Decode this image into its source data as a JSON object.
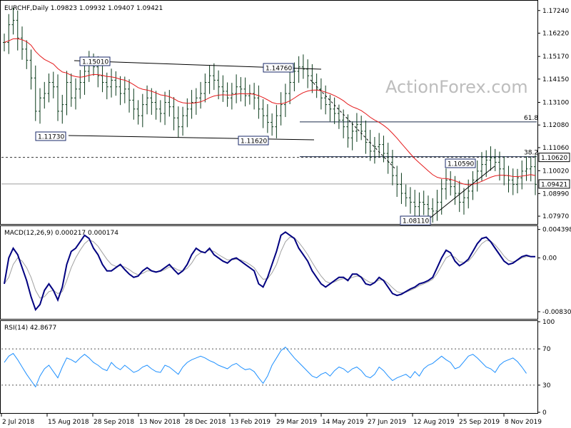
{
  "chart_data": [
    {
      "type": "candlestick",
      "panel": "price",
      "header": "EURCHF,Daily  1.09823 1.09932 1.09407 1.09421",
      "watermark": "ActionForex.com",
      "y_range": [
        1.0765,
        1.1765
      ],
      "y_ticks": [
        "1.17240",
        "1.16220",
        "1.15170",
        "1.14150",
        "1.13100",
        "1.12080",
        "1.11060",
        "1.10020",
        "1.08990",
        "1.07970"
      ],
      "current_price_label": "1.09421",
      "current_price": 1.09421,
      "level_label_1062": "1.10620",
      "level_1062": 1.1062,
      "fib_618_label": "61.8",
      "fib_618": 1.1222,
      "fib_382_label": "38.2",
      "fib_382": 1.1062,
      "price_labels": [
        {
          "text": "1.15010",
          "value": 1.1501,
          "date_index": 18
        },
        {
          "text": "1.14760",
          "value": 1.1476,
          "date_index": 68
        },
        {
          "text": "1.11730",
          "value": 1.1173,
          "date_index": 11
        },
        {
          "text": "1.11620",
          "value": 1.1162,
          "date_index": 63
        },
        {
          "text": "1.10590",
          "value": 1.1059,
          "date_index": 108
        },
        {
          "text": "1.08110",
          "value": 1.0811,
          "date_index": 97
        }
      ],
      "ema_color": "#e41a1c",
      "candle_color": "#0a3a1a",
      "series_color_hint": "dark green OHLC bars with red moving average",
      "x_tick_labels": [
        "2 Jul 2018",
        "15 Aug 2018",
        "28 Sep 2018",
        "13 Nov 2018",
        "28 Dec 2018",
        "13 Feb 2019",
        "29 Mar 2019",
        "14 May 2019",
        "27 Jun 2019",
        "12 Aug 2019",
        "25 Sep 2019",
        "8 Nov 2019"
      ],
      "close_series": [
        1.158,
        1.166,
        1.168,
        1.16,
        1.155,
        1.15,
        1.142,
        1.127,
        1.133,
        1.135,
        1.14,
        1.138,
        1.127,
        1.13,
        1.14,
        1.133,
        1.137,
        1.14,
        1.145,
        1.149,
        1.147,
        1.143,
        1.14,
        1.138,
        1.141,
        1.138,
        1.135,
        1.137,
        1.132,
        1.128,
        1.125,
        1.13,
        1.133,
        1.131,
        1.128,
        1.126,
        1.131,
        1.129,
        1.124,
        1.12,
        1.125,
        1.128,
        1.131,
        1.133,
        1.135,
        1.14,
        1.143,
        1.141,
        1.138,
        1.136,
        1.133,
        1.135,
        1.138,
        1.137,
        1.134,
        1.135,
        1.133,
        1.128,
        1.125,
        1.122,
        1.12,
        1.125,
        1.13,
        1.135,
        1.14,
        1.145,
        1.147,
        1.146,
        1.143,
        1.14,
        1.137,
        1.133,
        1.13,
        1.128,
        1.126,
        1.123,
        1.12,
        1.115,
        1.118,
        1.121,
        1.118,
        1.113,
        1.109,
        1.111,
        1.112,
        1.108,
        1.104,
        1.098,
        1.094,
        1.09,
        1.088,
        1.086,
        1.084,
        1.086,
        1.085,
        1.083,
        1.082,
        1.086,
        1.092,
        1.096,
        1.093,
        1.09,
        1.086,
        1.088,
        1.091,
        1.096,
        1.1,
        1.103,
        1.105,
        1.106,
        1.104,
        1.101,
        1.098,
        1.096,
        1.094,
        1.097,
        1.1,
        1.101,
        1.102,
        1.094
      ]
    },
    {
      "type": "line",
      "panel": "macd",
      "header": "MACD(12,26,9) 0.000217 0.000174",
      "y_range": [
        -0.0093,
        0.0048
      ],
      "y_ticks": [
        "0.004398",
        "0.00",
        "-0.008306"
      ],
      "tick_values": [
        0.004398,
        0.0,
        -0.008306
      ],
      "series": [
        {
          "name": "MACD",
          "color": "#000080",
          "values": [
            -0.004,
            0.0,
            0.0015,
            0.0005,
            -0.0015,
            -0.0035,
            -0.006,
            -0.008,
            -0.0072,
            -0.005,
            -0.004,
            -0.005,
            -0.0065,
            -0.0045,
            -0.001,
            0.001,
            0.0015,
            0.0025,
            0.0035,
            0.003,
            0.0015,
            0.0005,
            -0.001,
            -0.002,
            -0.002,
            -0.0015,
            -0.001,
            -0.0018,
            -0.0025,
            -0.003,
            -0.0028,
            -0.002,
            -0.0015,
            -0.002,
            -0.0022,
            -0.002,
            -0.0015,
            -0.001,
            -0.0018,
            -0.0025,
            -0.002,
            -0.001,
            0.0005,
            0.0015,
            0.001,
            0.0008,
            0.0015,
            0.0005,
            0.0,
            -0.0005,
            -0.0008,
            -0.0002,
            0.0,
            -0.0005,
            -0.001,
            -0.0015,
            -0.002,
            -0.004,
            -0.0045,
            -0.003,
            -0.001,
            0.001,
            0.0035,
            0.004,
            0.0035,
            0.003,
            0.0015,
            0.0005,
            -0.0005,
            -0.002,
            -0.003,
            -0.004,
            -0.0045,
            -0.004,
            -0.0035,
            -0.003,
            -0.003,
            -0.0035,
            -0.0025,
            -0.0025,
            -0.003,
            -0.004,
            -0.0042,
            -0.0038,
            -0.003,
            -0.0035,
            -0.0045,
            -0.0055,
            -0.0058,
            -0.0056,
            -0.0052,
            -0.0048,
            -0.0045,
            -0.004,
            -0.0038,
            -0.0035,
            -0.003,
            -0.0015,
            0.0,
            0.0012,
            0.0008,
            -0.0005,
            -0.0012,
            -0.0008,
            -0.0002,
            0.001,
            0.0022,
            0.003,
            0.0032,
            0.0025,
            0.0015,
            0.0005,
            -0.0005,
            -0.001,
            -0.0008,
            -0.0003,
            0.0002,
            0.0004,
            0.0002,
            0.0002
          ]
        },
        {
          "name": "Signal",
          "color": "#a0a0a0",
          "values": [
            -0.004,
            -0.003,
            -0.001,
            0.0,
            -0.0005,
            -0.0015,
            -0.003,
            -0.005,
            -0.0062,
            -0.006,
            -0.0052,
            -0.005,
            -0.0055,
            -0.0052,
            -0.0035,
            -0.0015,
            0.0,
            0.0012,
            0.0022,
            0.0028,
            0.0025,
            0.0018,
            0.0008,
            -0.0002,
            -0.001,
            -0.0013,
            -0.0012,
            -0.0014,
            -0.0018,
            -0.0023,
            -0.0026,
            -0.0024,
            -0.002,
            -0.002,
            -0.0021,
            -0.0021,
            -0.0018,
            -0.0014,
            -0.0015,
            -0.0019,
            -0.002,
            -0.0016,
            -0.0008,
            0.0003,
            0.0008,
            0.0009,
            0.0012,
            0.001,
            0.0005,
            0.0001,
            -0.0003,
            -0.0003,
            -0.0002,
            -0.0003,
            -0.0006,
            -0.001,
            -0.0015,
            -0.0025,
            -0.0033,
            -0.0032,
            -0.0023,
            -0.001,
            0.001,
            0.0025,
            0.0032,
            0.0031,
            0.0024,
            0.0015,
            0.0005,
            -0.0007,
            -0.0018,
            -0.0028,
            -0.0036,
            -0.0039,
            -0.0037,
            -0.0034,
            -0.0032,
            -0.0033,
            -0.003,
            -0.0028,
            -0.0029,
            -0.0034,
            -0.0038,
            -0.0038,
            -0.0034,
            -0.0034,
            -0.0039,
            -0.0046,
            -0.0052,
            -0.0054,
            -0.0053,
            -0.005,
            -0.0047,
            -0.0043,
            -0.004,
            -0.0037,
            -0.0033,
            -0.0024,
            -0.0012,
            0.0,
            0.0004,
            0.0001,
            -0.0006,
            -0.0007,
            -0.0005,
            0.0003,
            0.0013,
            0.0022,
            0.0027,
            0.0026,
            0.002,
            0.0012,
            0.0003,
            -0.0004,
            -0.0006,
            -0.0004,
            0.0,
            0.0002,
            0.0002,
            0.0002
          ]
        }
      ]
    },
    {
      "type": "line",
      "panel": "rsi",
      "header": "RSI(14) 42.8677",
      "y_range": [
        0,
        100
      ],
      "y_ticks": [
        "100",
        "70",
        "30",
        "0"
      ],
      "tick_values": [
        100,
        70,
        30,
        0
      ],
      "series": [
        {
          "name": "RSI",
          "color": "#1e90ff",
          "values": [
            55,
            62,
            65,
            58,
            50,
            42,
            35,
            28,
            40,
            48,
            52,
            45,
            38,
            50,
            60,
            58,
            55,
            60,
            64,
            60,
            55,
            52,
            48,
            46,
            55,
            50,
            47,
            52,
            48,
            44,
            46,
            50,
            52,
            48,
            45,
            44,
            52,
            50,
            46,
            42,
            50,
            55,
            58,
            60,
            62,
            60,
            57,
            55,
            52,
            50,
            48,
            52,
            54,
            50,
            47,
            48,
            45,
            38,
            32,
            40,
            52,
            60,
            68,
            72,
            66,
            60,
            55,
            50,
            45,
            40,
            38,
            42,
            44,
            40,
            46,
            50,
            48,
            44,
            48,
            50,
            46,
            40,
            38,
            42,
            50,
            46,
            40,
            35,
            38,
            40,
            42,
            38,
            45,
            40,
            48,
            52,
            54,
            58,
            62,
            58,
            55,
            48,
            50,
            56,
            62,
            64,
            60,
            55,
            50,
            48,
            44,
            52,
            56,
            58,
            60,
            56,
            50,
            43
          ]
        }
      ]
    }
  ]
}
